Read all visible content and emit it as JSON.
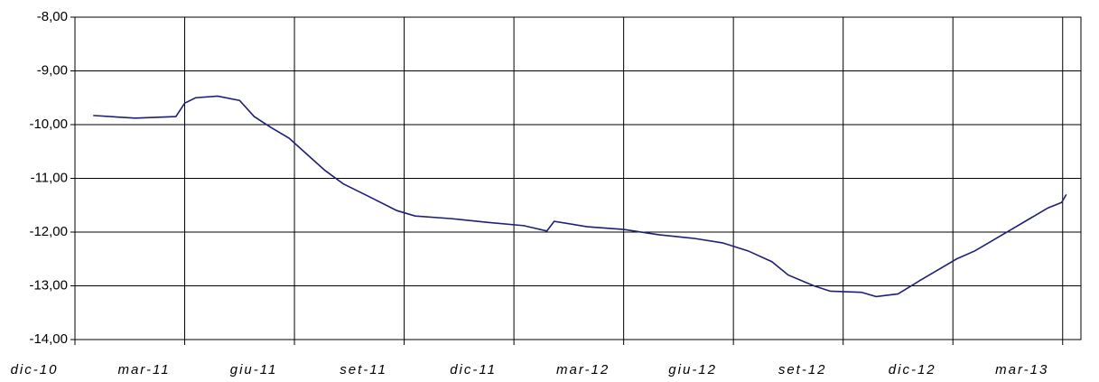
{
  "chart_data": {
    "type": "line",
    "x": [
      0.5,
      1.65,
      2.76,
      3.0,
      3.3,
      3.9,
      4.5,
      4.9,
      5.35,
      5.85,
      6.34,
      6.83,
      7.33,
      8.07,
      8.8,
      9.3,
      10.3,
      11.3,
      12.27,
      12.9,
      13.1,
      14.0,
      15.0,
      15.96,
      16.95,
      17.7,
      18.4,
      19.05,
      19.5,
      20.2,
      20.65,
      21.5,
      21.9,
      22.5,
      23.1,
      23.6,
      24.1,
      24.6,
      25.1,
      25.6,
      26.1,
      26.6,
      26.97,
      27.1
    ],
    "series": [
      {
        "color": "#1f1f7a",
        "values": [
          -9.83,
          -9.88,
          -9.85,
          -9.6,
          -9.5,
          -9.47,
          -9.55,
          -9.85,
          -10.05,
          -10.25,
          -10.55,
          -10.85,
          -11.1,
          -11.35,
          -11.6,
          -11.7,
          -11.75,
          -11.82,
          -11.88,
          -11.98,
          -11.8,
          -11.9,
          -11.95,
          -12.05,
          -12.12,
          -12.2,
          -12.35,
          -12.55,
          -12.8,
          -13.0,
          -13.1,
          -13.12,
          -13.2,
          -13.15,
          -12.9,
          -12.7,
          -12.5,
          -12.35,
          -12.15,
          -11.95,
          -11.75,
          -11.55,
          -11.45,
          -11.3
        ]
      }
    ],
    "xlim": [
      0,
      27.5
    ],
    "xticks": [
      {
        "value": 0,
        "label": "dic-10"
      },
      {
        "value": 3,
        "label": "mar-11"
      },
      {
        "value": 6,
        "label": "giu-11"
      },
      {
        "value": 9,
        "label": "set-11"
      },
      {
        "value": 12,
        "label": "dic-11"
      },
      {
        "value": 15,
        "label": "mar-12"
      },
      {
        "value": 18,
        "label": "giu-12"
      },
      {
        "value": 21,
        "label": "set-12"
      },
      {
        "value": 24,
        "label": "dic-12"
      },
      {
        "value": 27,
        "label": "mar-13"
      }
    ],
    "ylim": [
      -14,
      -8
    ],
    "yticks": [
      {
        "value": -14,
        "label": "-14,00"
      },
      {
        "value": -13,
        "label": "-13,00"
      },
      {
        "value": -12,
        "label": "-12,00"
      },
      {
        "value": -11,
        "label": "-11,00"
      },
      {
        "value": -10,
        "label": "-10,00"
      },
      {
        "value": -9,
        "label": "-9,00"
      },
      {
        "value": -8,
        "label": "-8,00"
      }
    ],
    "grid": true
  }
}
